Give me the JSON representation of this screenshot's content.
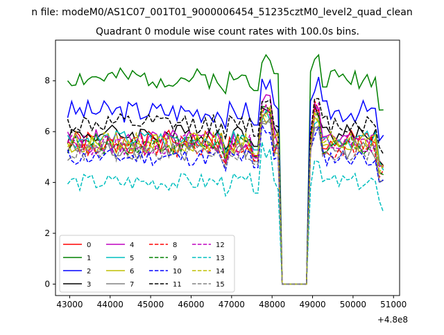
{
  "chart_data": {
    "type": "line",
    "suptitle": "n file: modeM0/AS1C07_001T01_9000006454_51235cztM0_level2_quad_clean",
    "title": "Quadrant 0 module wise count rates with 100.0s bins.",
    "xlabel": "",
    "ylabel": "",
    "x_offset_label": "+4.8e8",
    "xlim": [
      42650,
      51150
    ],
    "ylim": [
      -0.45,
      9.6
    ],
    "xticks": [
      43000,
      44000,
      45000,
      46000,
      47000,
      48000,
      49000,
      50000,
      51000
    ],
    "xtick_labels": [
      "43000",
      "44000",
      "45000",
      "46000",
      "47000",
      "48000",
      "49000",
      "50000",
      "51000"
    ],
    "yticks": [
      0,
      2,
      4,
      6,
      8
    ],
    "ytick_labels": [
      "0",
      "2",
      "4",
      "6",
      "8"
    ],
    "grid": false,
    "legend_position": "lower-left",
    "legend_columns": 4,
    "x_pattern": "start 42950, step 100; gap between 48200 and 49000 where values are 0",
    "series": [
      {
        "name": "0",
        "color": "#ff0000",
        "dash": "solid",
        "base": 5.6,
        "amp": 0.45,
        "seed": 1,
        "peak": 7.0
      },
      {
        "name": "1",
        "color": "#008000",
        "dash": "solid",
        "base": 8.1,
        "amp": 0.4,
        "seed": 2,
        "peak": 9.1
      },
      {
        "name": "2",
        "color": "#0000ff",
        "dash": "solid",
        "base": 6.8,
        "amp": 0.45,
        "seed": 3,
        "peak": 8.2
      },
      {
        "name": "3",
        "color": "#000000",
        "dash": "solid",
        "base": 5.9,
        "amp": 0.4,
        "seed": 4,
        "peak": 7.2
      },
      {
        "name": "4",
        "color": "#bf00bf",
        "dash": "solid",
        "base": 5.6,
        "amp": 0.5,
        "seed": 5,
        "peak": 7.8
      },
      {
        "name": "5",
        "color": "#00bfbf",
        "dash": "solid",
        "base": 5.7,
        "amp": 0.35,
        "seed": 6,
        "peak": 6.9
      },
      {
        "name": "6",
        "color": "#bfbf00",
        "dash": "solid",
        "base": 5.5,
        "amp": 0.4,
        "seed": 7,
        "peak": 6.8
      },
      {
        "name": "7",
        "color": "#808080",
        "dash": "solid",
        "base": 5.3,
        "amp": 0.4,
        "seed": 8,
        "peak": 6.6
      },
      {
        "name": "8",
        "color": "#ff0000",
        "dash": "dashed",
        "base": 5.4,
        "amp": 0.45,
        "seed": 9,
        "peak": 7.3
      },
      {
        "name": "9",
        "color": "#008000",
        "dash": "dashed",
        "base": 5.5,
        "amp": 0.4,
        "seed": 10,
        "peak": 7.0
      },
      {
        "name": "10",
        "color": "#0000ff",
        "dash": "dashed",
        "base": 5.0,
        "amp": 0.35,
        "seed": 11,
        "peak": 6.4
      },
      {
        "name": "11",
        "color": "#000000",
        "dash": "dashed",
        "base": 6.3,
        "amp": 0.4,
        "seed": 12,
        "peak": 7.4
      },
      {
        "name": "12",
        "color": "#bf00bf",
        "dash": "dashed",
        "base": 5.5,
        "amp": 0.45,
        "seed": 13,
        "peak": 7.2
      },
      {
        "name": "13",
        "color": "#00bfbf",
        "dash": "dashed",
        "base": 4.0,
        "amp": 0.35,
        "seed": 14,
        "peak": 5.6
      },
      {
        "name": "14",
        "color": "#bfbf00",
        "dash": "dashed",
        "base": 5.6,
        "amp": 0.4,
        "seed": 15,
        "peak": 7.0
      },
      {
        "name": "15",
        "color": "#808080",
        "dash": "dashed",
        "base": 5.2,
        "amp": 0.4,
        "seed": 16,
        "peak": 6.7
      }
    ]
  }
}
